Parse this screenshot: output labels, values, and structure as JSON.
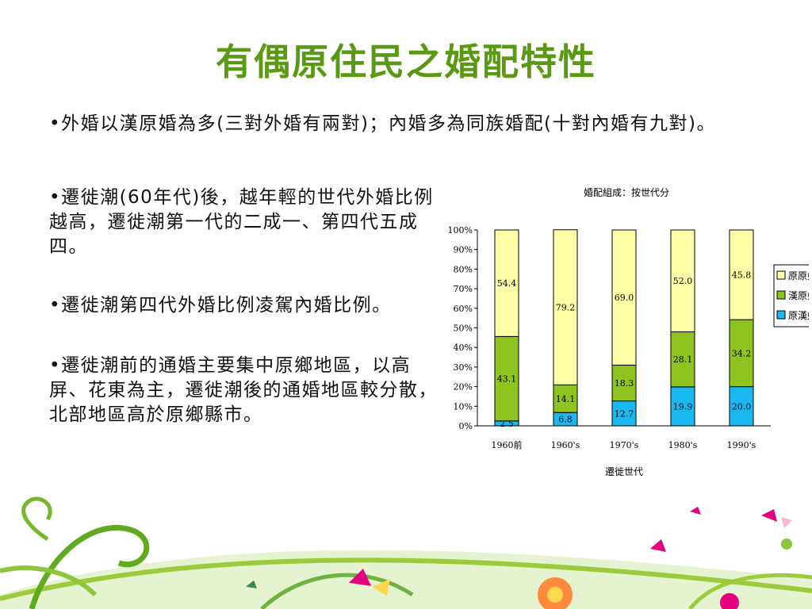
{
  "slide": {
    "title": "有偶原住民之婚配特性",
    "bullets": [
      "外婚以漢原婚為多(三對外婚有兩對)；內婚多為同族婚配(十對內婚有九對)。",
      "遷徙潮(60年代)後，越年輕的世代外婚比例越高，遷徙潮第一代的二成一、第四代五成四。",
      "遷徙潮第四代外婚比例凌駕內婚比例。",
      "遷徙潮前的通婚主要集中原鄉地區，以高屏、花東為主，遷徙潮後的通婚地區較分散，北部地區高於原鄉縣市。"
    ],
    "bullet_mark": "•"
  },
  "chart_data": {
    "type": "bar",
    "stacked": true,
    "title": "婚配組成：按世代分",
    "xlabel": "遷徙世代",
    "ylabel": "",
    "ylim": [
      0,
      100
    ],
    "yticks": [
      "0%",
      "10%",
      "20%",
      "30%",
      "40%",
      "50%",
      "60%",
      "70%",
      "80%",
      "90%",
      "100%"
    ],
    "categories": [
      "1960前",
      "1960's",
      "1970's",
      "1980's",
      "1990's"
    ],
    "series": [
      {
        "name": "原漢婚",
        "color": "#1ab8f0",
        "values": [
          2.5,
          6.8,
          12.7,
          19.9,
          20.0
        ]
      },
      {
        "name": "漢原婚",
        "color": "#8fc31f",
        "values": [
          43.1,
          14.1,
          18.3,
          28.1,
          34.2
        ]
      },
      {
        "name": "原原婚",
        "color": "#ffffa8",
        "values": [
          54.4,
          79.2,
          69.0,
          52.0,
          45.8
        ]
      }
    ],
    "legend_order": [
      "原原婚",
      "漢原婚",
      "原漢婚"
    ],
    "legend_position": "right"
  }
}
